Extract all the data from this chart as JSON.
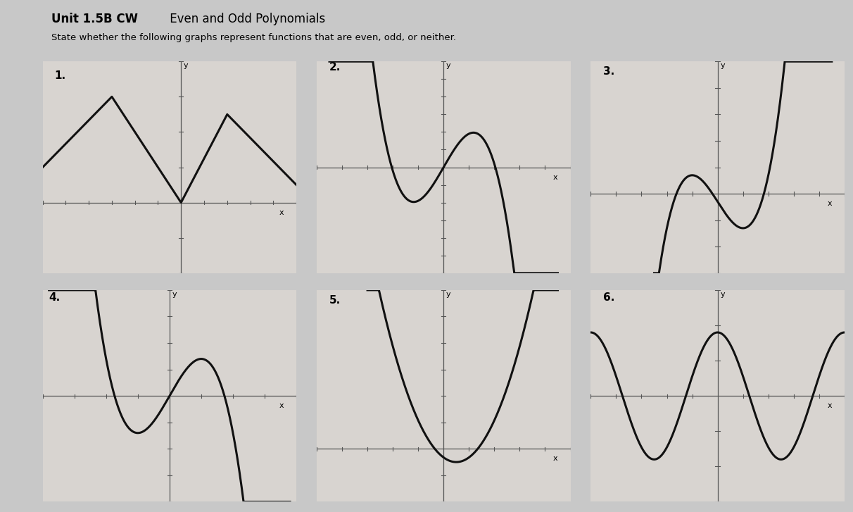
{
  "title": "Unit 1.5B CW  Even and Odd Polynomials",
  "subtitle": "State whether the following graphs represent functions that are even, odd, or neither.",
  "background_color": "#c8c8c8",
  "panel_bg": "#d8d4d0",
  "line_color": "#111111",
  "axis_color": "#333333",
  "label_fontsize": 10,
  "title_fontsize": 12,
  "graph_labels": [
    "1.",
    "2.",
    "3.",
    "4.",
    "5.",
    "6."
  ]
}
